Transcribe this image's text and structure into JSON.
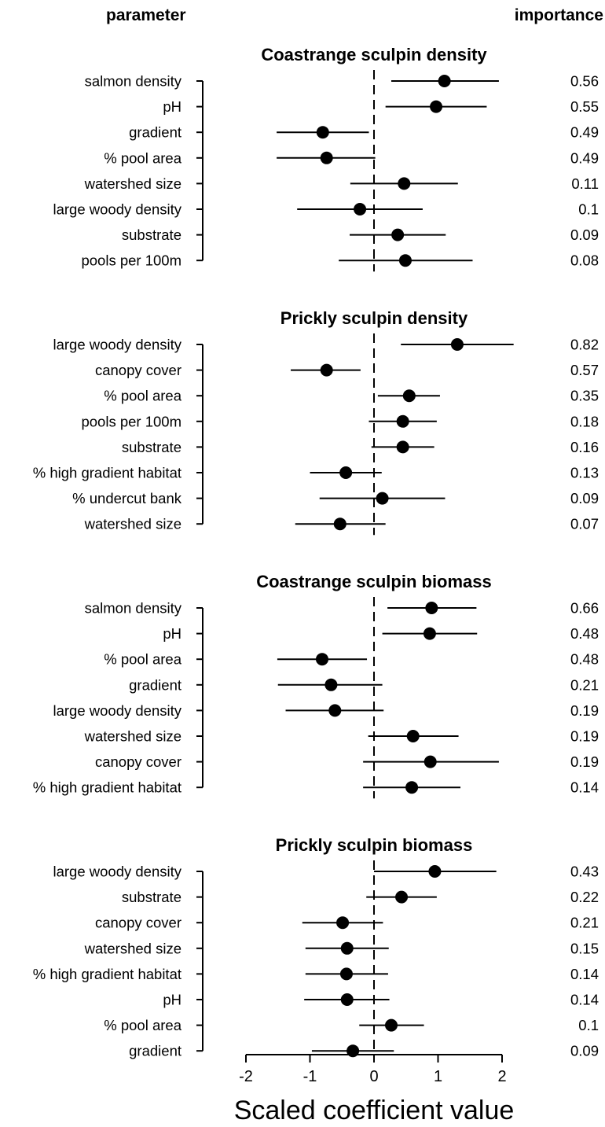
{
  "header": {
    "left": "parameter",
    "right": "importance"
  },
  "chart_data": {
    "type": "scatter",
    "xlabel": "Scaled coefficient value",
    "xlim": [
      -2,
      2
    ],
    "xticks": [
      -2,
      -1,
      0,
      1,
      2
    ],
    "reference_line": 0,
    "panels": [
      {
        "title": "Coastrange sculpin density",
        "rows": [
          {
            "parameter": "salmon density",
            "estimate": 1.1,
            "lower": 0.27,
            "upper": 1.95,
            "importance": "0.56"
          },
          {
            "parameter": "pH",
            "estimate": 0.97,
            "lower": 0.18,
            "upper": 1.76,
            "importance": "0.55"
          },
          {
            "parameter": "gradient",
            "estimate": -0.8,
            "lower": -1.52,
            "upper": -0.08,
            "importance": "0.49"
          },
          {
            "parameter": "% pool area",
            "estimate": -0.74,
            "lower": -1.52,
            "upper": 0.02,
            "importance": "0.49"
          },
          {
            "parameter": "watershed size",
            "estimate": 0.47,
            "lower": -0.37,
            "upper": 1.31,
            "importance": "0.11"
          },
          {
            "parameter": "large woody density",
            "estimate": -0.22,
            "lower": -1.2,
            "upper": 0.76,
            "importance": "0.1"
          },
          {
            "parameter": "substrate",
            "estimate": 0.37,
            "lower": -0.38,
            "upper": 1.12,
            "importance": "0.09"
          },
          {
            "parameter": "pools per 100m",
            "estimate": 0.49,
            "lower": -0.55,
            "upper": 1.54,
            "importance": "0.08"
          }
        ]
      },
      {
        "title": "Prickly sculpin density",
        "rows": [
          {
            "parameter": "large woody density",
            "estimate": 1.3,
            "lower": 0.42,
            "upper": 2.18,
            "importance": "0.82"
          },
          {
            "parameter": "canopy cover",
            "estimate": -0.74,
            "lower": -1.3,
            "upper": -0.21,
            "importance": "0.57"
          },
          {
            "parameter": "% pool area",
            "estimate": 0.55,
            "lower": 0.06,
            "upper": 1.03,
            "importance": "0.35"
          },
          {
            "parameter": "pools per 100m",
            "estimate": 0.45,
            "lower": -0.08,
            "upper": 0.98,
            "importance": "0.18"
          },
          {
            "parameter": "substrate",
            "estimate": 0.45,
            "lower": -0.04,
            "upper": 0.94,
            "importance": "0.16"
          },
          {
            "parameter": "% high gradient habitat",
            "estimate": -0.44,
            "lower": -1.0,
            "upper": 0.12,
            "importance": "0.13"
          },
          {
            "parameter": "% undercut bank",
            "estimate": 0.13,
            "lower": -0.85,
            "upper": 1.11,
            "importance": "0.09"
          },
          {
            "parameter": "watershed size",
            "estimate": -0.53,
            "lower": -1.23,
            "upper": 0.18,
            "importance": "0.07"
          }
        ]
      },
      {
        "title": "Coastrange sculpin biomass",
        "rows": [
          {
            "parameter": "salmon density",
            "estimate": 0.9,
            "lower": 0.21,
            "upper": 1.6,
            "importance": "0.66"
          },
          {
            "parameter": "pH",
            "estimate": 0.87,
            "lower": 0.13,
            "upper": 1.61,
            "importance": "0.48"
          },
          {
            "parameter": "% pool area",
            "estimate": -0.81,
            "lower": -1.51,
            "upper": -0.11,
            "importance": "0.48"
          },
          {
            "parameter": "gradient",
            "estimate": -0.67,
            "lower": -1.5,
            "upper": 0.13,
            "importance": "0.21"
          },
          {
            "parameter": "large woody density",
            "estimate": -0.61,
            "lower": -1.38,
            "upper": 0.15,
            "importance": "0.19"
          },
          {
            "parameter": "watershed size",
            "estimate": 0.61,
            "lower": -0.09,
            "upper": 1.32,
            "importance": "0.19"
          },
          {
            "parameter": "canopy cover",
            "estimate": 0.88,
            "lower": -0.17,
            "upper": 1.95,
            "importance": "0.19"
          },
          {
            "parameter": "% high gradient habitat",
            "estimate": 0.59,
            "lower": -0.17,
            "upper": 1.35,
            "importance": "0.14"
          }
        ]
      },
      {
        "title": "Prickly sculpin biomass",
        "rows": [
          {
            "parameter": "large woody density",
            "estimate": 0.95,
            "lower": 0.0,
            "upper": 1.91,
            "importance": "0.43"
          },
          {
            "parameter": "substrate",
            "estimate": 0.43,
            "lower": -0.12,
            "upper": 0.98,
            "importance": "0.22"
          },
          {
            "parameter": "canopy cover",
            "estimate": -0.49,
            "lower": -1.12,
            "upper": 0.14,
            "importance": "0.21"
          },
          {
            "parameter": "watershed size",
            "estimate": -0.42,
            "lower": -1.07,
            "upper": 0.23,
            "importance": "0.15"
          },
          {
            "parameter": "% high gradient habitat",
            "estimate": -0.43,
            "lower": -1.07,
            "upper": 0.22,
            "importance": "0.14"
          },
          {
            "parameter": "pH",
            "estimate": -0.42,
            "lower": -1.09,
            "upper": 0.24,
            "importance": "0.14"
          },
          {
            "parameter": "% pool area",
            "estimate": 0.27,
            "lower": -0.23,
            "upper": 0.78,
            "importance": "0.1"
          },
          {
            "parameter": "gradient",
            "estimate": -0.33,
            "lower": -0.97,
            "upper": 0.31,
            "importance": "0.09"
          }
        ]
      }
    ]
  }
}
